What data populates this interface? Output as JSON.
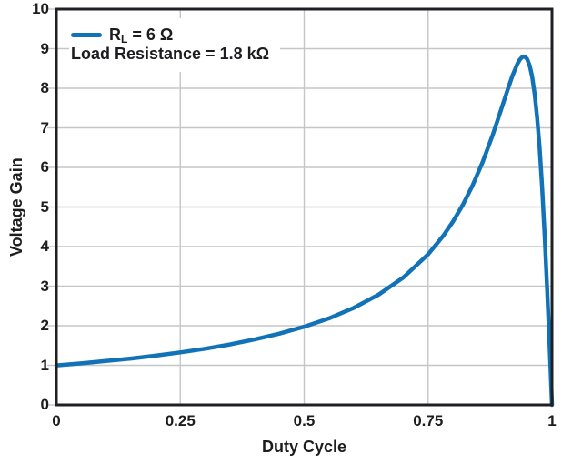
{
  "figure": {
    "background": "#ffffff",
    "text_color": "#1c1d1f",
    "frame_color": "#1f2023",
    "grid_color": "#c5c6c7",
    "line_color": "#1272B8"
  },
  "chart_data": {
    "type": "line",
    "title": "",
    "xlabel": "Duty Cycle",
    "ylabel": "Voltage Gain",
    "xlim": [
      0,
      1
    ],
    "ylim": [
      0,
      10
    ],
    "grid": true,
    "x_ticks": [
      {
        "value": 0,
        "label": "0"
      },
      {
        "value": 0.25,
        "label": "0.25"
      },
      {
        "value": 0.5,
        "label": "0.5"
      },
      {
        "value": 0.75,
        "label": "0.75"
      },
      {
        "value": 1,
        "label": "1"
      }
    ],
    "y_ticks": [
      {
        "value": 0,
        "label": "0"
      },
      {
        "value": 1,
        "label": "1"
      },
      {
        "value": 2,
        "label": "2"
      },
      {
        "value": 3,
        "label": "3"
      },
      {
        "value": 4,
        "label": "4"
      },
      {
        "value": 5,
        "label": "5"
      },
      {
        "value": 6,
        "label": "6"
      },
      {
        "value": 7,
        "label": "7"
      },
      {
        "value": 8,
        "label": "8"
      },
      {
        "value": 9,
        "label": "9"
      },
      {
        "value": 10,
        "label": "10"
      }
    ],
    "legend": {
      "position": "top-left",
      "entries": [
        {
          "label": "RL = 6 Ω",
          "label_main": "R",
          "label_sub": "L",
          "label_rest": " = 6 Ω",
          "color": "#1272B8"
        }
      ],
      "note": "Load Resistance = 1.8 kΩ"
    },
    "series": [
      {
        "name": "RL = 6 Ω",
        "color": "#1272B8",
        "x": [
          0,
          0.05,
          0.1,
          0.15,
          0.2,
          0.25,
          0.3,
          0.35,
          0.4,
          0.45,
          0.5,
          0.55,
          0.6,
          0.65,
          0.7,
          0.75,
          0.78,
          0.8,
          0.82,
          0.84,
          0.86,
          0.88,
          0.9,
          0.91,
          0.92,
          0.93,
          0.935,
          0.94,
          0.943,
          0.947,
          0.95,
          0.955,
          0.96,
          0.965,
          0.97,
          0.975,
          0.98,
          0.985,
          0.99,
          0.995,
          0.998,
          1.0
        ],
        "y": [
          0.997,
          1.049,
          1.107,
          1.171,
          1.244,
          1.326,
          1.419,
          1.527,
          1.652,
          1.799,
          1.975,
          2.187,
          2.451,
          2.784,
          3.218,
          3.804,
          4.261,
          4.627,
          5.053,
          5.551,
          6.133,
          6.808,
          7.561,
          7.946,
          8.311,
          8.615,
          8.724,
          8.79,
          8.803,
          8.782,
          8.732,
          8.57,
          8.289,
          7.864,
          7.271,
          6.492,
          5.516,
          4.347,
          3.007,
          1.538,
          0.619,
          0.0
        ],
        "peak": {
          "x": 0.943,
          "y": 8.8
        }
      }
    ]
  }
}
